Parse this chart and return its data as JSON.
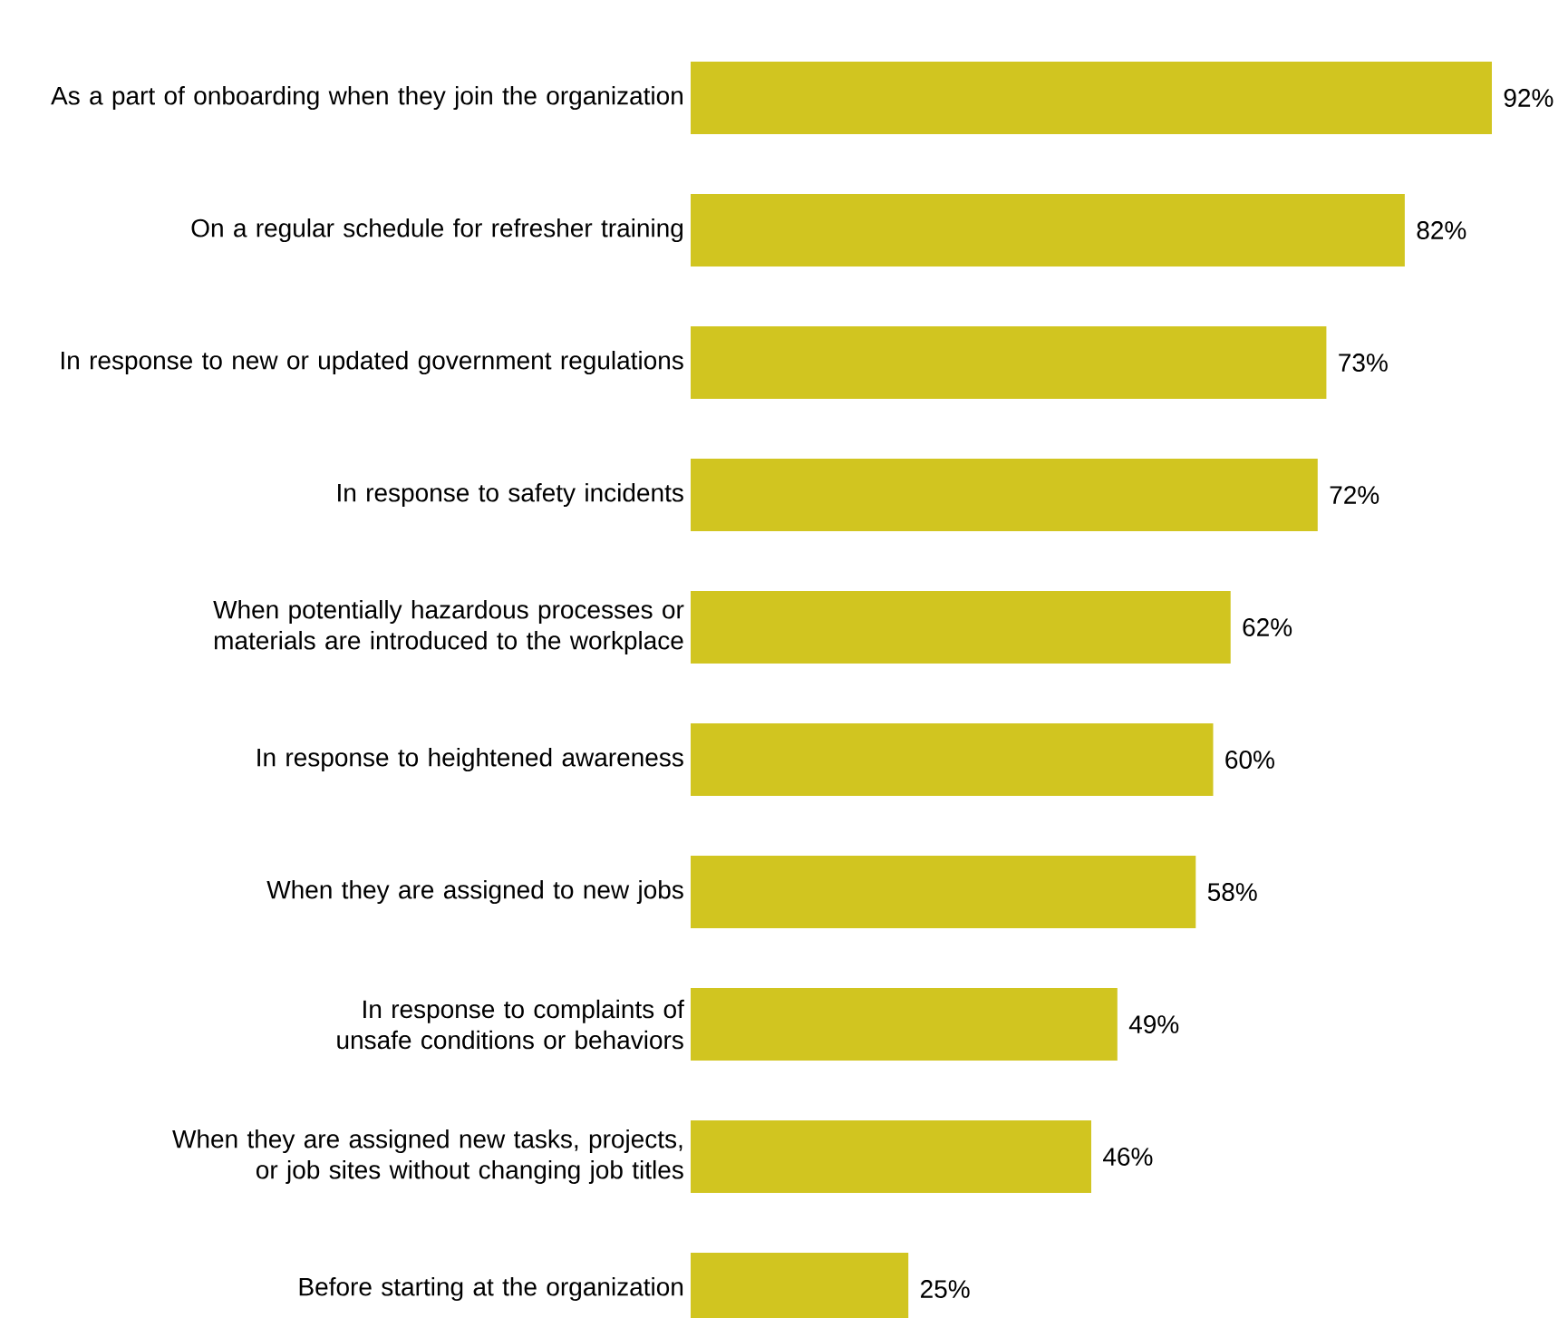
{
  "chart_data": {
    "type": "bar",
    "orientation": "horizontal",
    "categories": [
      "As a part of onboarding when they join the organization",
      "On a regular schedule for refresher training",
      "In response to new or updated government regulations",
      "In response to safety incidents",
      "When potentially hazardous processes or materials are introduced to the workplace",
      "In response to heightened awareness",
      "When they are assigned to new jobs",
      "In response to complaints of unsafe conditions or behaviors",
      "When they are assigned new tasks, projects, or job sites without changing job titles",
      "Before starting at the organization"
    ],
    "values": [
      92,
      82,
      73,
      72,
      62,
      60,
      58,
      49,
      46,
      25
    ],
    "value_labels": [
      "92%",
      "82%",
      "73%",
      "72%",
      "62%",
      "60%",
      "58%",
      "49%",
      "46%",
      "25%"
    ],
    "color": "#d1c520"
  }
}
